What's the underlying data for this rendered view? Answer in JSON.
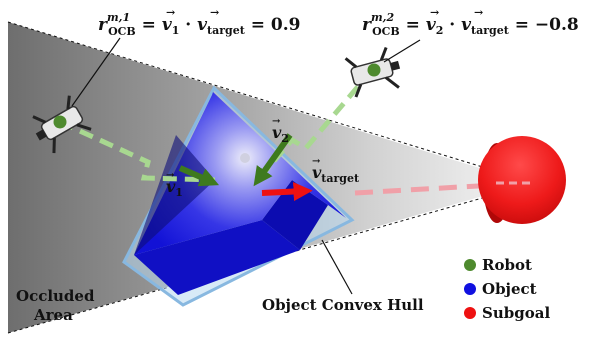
{
  "equations": {
    "robot1": "rᴍᶜᴮ = v⃗₁ · v⃗target = 0.9",
    "robot1_parts": {
      "r": "r",
      "sup": "m,1",
      "sub": "OCB",
      "rhs": " = ",
      "v1": "v",
      "v1sub": "1",
      "dot": " · ",
      "vt": "v",
      "vtsub": "target",
      "val": " = 0.9"
    },
    "robot2_parts": {
      "r": "r",
      "sup": "m,2",
      "sub": "OCB",
      "rhs": " = ",
      "v2": "v",
      "v2sub": "2",
      "dot": " · ",
      "vt": "v",
      "vtsub": "target",
      "val": " = −0.8"
    }
  },
  "vectors": {
    "v1": {
      "base": "v",
      "sub": "1"
    },
    "v2": {
      "base": "v",
      "sub": "2"
    },
    "vtarget": {
      "base": "v",
      "sub": "target"
    }
  },
  "labels": {
    "occluded_line1": "Occluded",
    "occluded_line2": "Area",
    "hull": "Object Convex Hull"
  },
  "legend": [
    {
      "label": "Robot",
      "color": "#4e8a2e"
    },
    {
      "label": "Object",
      "color": "#1010e0"
    },
    {
      "label": "Subgoal",
      "color": "#ee1111"
    }
  ],
  "colors": {
    "robot_marker": "#4e8a2e",
    "object": "#1a1ae6",
    "subgoal": "#ee1111",
    "v_arrows": "#3e7a1e",
    "target_arrow": "#ee1111",
    "dashed_robot": "#a8d890",
    "dashed_subgoal": "#f0a0a8",
    "occluded": "#8a8a8a"
  }
}
